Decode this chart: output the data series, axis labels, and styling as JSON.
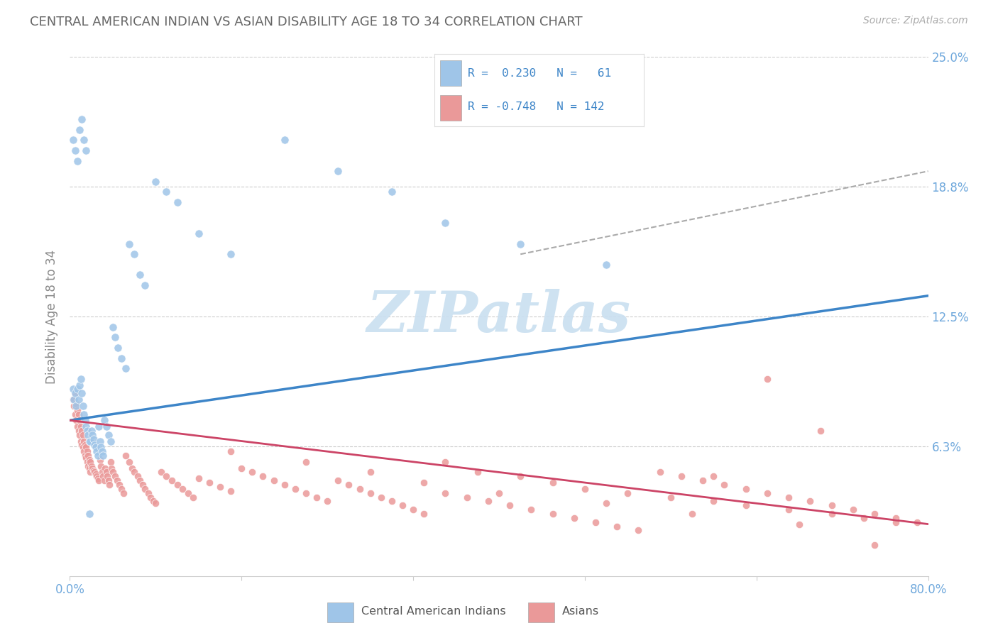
{
  "title": "CENTRAL AMERICAN INDIAN VS ASIAN DISABILITY AGE 18 TO 34 CORRELATION CHART",
  "source": "Source: ZipAtlas.com",
  "ylabel": "Disability Age 18 to 34",
  "xlim": [
    0.0,
    0.8
  ],
  "ylim": [
    0.0,
    0.25
  ],
  "yticks": [
    0.0,
    0.0625,
    0.125,
    0.1875,
    0.25
  ],
  "ytick_labels": [
    "",
    "6.3%",
    "12.5%",
    "18.8%",
    "25.0%"
  ],
  "xticks": [
    0.0,
    0.16,
    0.32,
    0.48,
    0.64,
    0.8
  ],
  "xtick_labels": [
    "0.0%",
    "",
    "",
    "",
    "",
    "80.0%"
  ],
  "blue_color": "#9fc5e8",
  "pink_color": "#ea9999",
  "blue_line_color": "#3d85c8",
  "pink_line_color": "#cc4466",
  "dashed_line_color": "#aaaaaa",
  "watermark_color": "#c9dff0",
  "background_color": "#ffffff",
  "grid_color": "#cccccc",
  "title_color": "#666666",
  "tick_color": "#6fa8dc",
  "blue_scatter_x": [
    0.003,
    0.004,
    0.005,
    0.006,
    0.007,
    0.008,
    0.009,
    0.01,
    0.011,
    0.012,
    0.013,
    0.014,
    0.015,
    0.016,
    0.017,
    0.018,
    0.019,
    0.02,
    0.021,
    0.022,
    0.023,
    0.024,
    0.025,
    0.026,
    0.027,
    0.028,
    0.029,
    0.03,
    0.031,
    0.032,
    0.034,
    0.036,
    0.038,
    0.04,
    0.042,
    0.045,
    0.048,
    0.052,
    0.055,
    0.06,
    0.065,
    0.07,
    0.08,
    0.09,
    0.1,
    0.12,
    0.15,
    0.2,
    0.25,
    0.3,
    0.35,
    0.42,
    0.5,
    0.003,
    0.005,
    0.007,
    0.009,
    0.011,
    0.013,
    0.015,
    0.018
  ],
  "blue_scatter_y": [
    0.09,
    0.085,
    0.088,
    0.082,
    0.09,
    0.085,
    0.092,
    0.095,
    0.088,
    0.082,
    0.078,
    0.075,
    0.072,
    0.07,
    0.068,
    0.065,
    0.065,
    0.07,
    0.068,
    0.066,
    0.063,
    0.062,
    0.06,
    0.058,
    0.072,
    0.065,
    0.062,
    0.06,
    0.058,
    0.075,
    0.072,
    0.068,
    0.065,
    0.12,
    0.115,
    0.11,
    0.105,
    0.1,
    0.16,
    0.155,
    0.145,
    0.14,
    0.19,
    0.185,
    0.18,
    0.165,
    0.155,
    0.21,
    0.195,
    0.185,
    0.17,
    0.16,
    0.15,
    0.21,
    0.205,
    0.2,
    0.215,
    0.22,
    0.21,
    0.205,
    0.03
  ],
  "pink_scatter_x": [
    0.003,
    0.004,
    0.005,
    0.005,
    0.006,
    0.006,
    0.007,
    0.007,
    0.008,
    0.008,
    0.009,
    0.009,
    0.01,
    0.01,
    0.011,
    0.011,
    0.012,
    0.012,
    0.013,
    0.013,
    0.014,
    0.014,
    0.015,
    0.015,
    0.016,
    0.016,
    0.017,
    0.017,
    0.018,
    0.018,
    0.019,
    0.019,
    0.02,
    0.021,
    0.022,
    0.023,
    0.024,
    0.025,
    0.026,
    0.027,
    0.028,
    0.029,
    0.03,
    0.031,
    0.032,
    0.033,
    0.034,
    0.035,
    0.036,
    0.037,
    0.038,
    0.039,
    0.04,
    0.042,
    0.044,
    0.046,
    0.048,
    0.05,
    0.052,
    0.055,
    0.058,
    0.06,
    0.063,
    0.065,
    0.068,
    0.07,
    0.073,
    0.075,
    0.078,
    0.08,
    0.085,
    0.09,
    0.095,
    0.1,
    0.105,
    0.11,
    0.115,
    0.12,
    0.13,
    0.14,
    0.15,
    0.16,
    0.17,
    0.18,
    0.19,
    0.2,
    0.21,
    0.22,
    0.23,
    0.24,
    0.25,
    0.26,
    0.27,
    0.28,
    0.29,
    0.3,
    0.31,
    0.32,
    0.33,
    0.35,
    0.37,
    0.39,
    0.41,
    0.43,
    0.45,
    0.47,
    0.49,
    0.51,
    0.53,
    0.55,
    0.57,
    0.59,
    0.61,
    0.63,
    0.65,
    0.67,
    0.69,
    0.71,
    0.73,
    0.75,
    0.77,
    0.79,
    0.35,
    0.38,
    0.42,
    0.45,
    0.48,
    0.52,
    0.56,
    0.6,
    0.63,
    0.67,
    0.71,
    0.74,
    0.77,
    0.15,
    0.22,
    0.28,
    0.33,
    0.4,
    0.5,
    0.58,
    0.68,
    0.75,
    0.6,
    0.65,
    0.7
  ],
  "pink_scatter_y": [
    0.085,
    0.082,
    0.088,
    0.078,
    0.083,
    0.075,
    0.08,
    0.072,
    0.078,
    0.07,
    0.075,
    0.068,
    0.072,
    0.065,
    0.07,
    0.063,
    0.068,
    0.062,
    0.065,
    0.06,
    0.063,
    0.058,
    0.062,
    0.057,
    0.06,
    0.055,
    0.058,
    0.053,
    0.056,
    0.052,
    0.055,
    0.05,
    0.053,
    0.052,
    0.051,
    0.05,
    0.049,
    0.048,
    0.047,
    0.046,
    0.056,
    0.053,
    0.05,
    0.048,
    0.046,
    0.052,
    0.05,
    0.048,
    0.046,
    0.044,
    0.055,
    0.052,
    0.05,
    0.048,
    0.046,
    0.044,
    0.042,
    0.04,
    0.058,
    0.055,
    0.052,
    0.05,
    0.048,
    0.046,
    0.044,
    0.042,
    0.04,
    0.038,
    0.036,
    0.035,
    0.05,
    0.048,
    0.046,
    0.044,
    0.042,
    0.04,
    0.038,
    0.047,
    0.045,
    0.043,
    0.041,
    0.052,
    0.05,
    0.048,
    0.046,
    0.044,
    0.042,
    0.04,
    0.038,
    0.036,
    0.046,
    0.044,
    0.042,
    0.04,
    0.038,
    0.036,
    0.034,
    0.032,
    0.03,
    0.04,
    0.038,
    0.036,
    0.034,
    0.032,
    0.03,
    0.028,
    0.026,
    0.024,
    0.022,
    0.05,
    0.048,
    0.046,
    0.044,
    0.042,
    0.04,
    0.038,
    0.036,
    0.034,
    0.032,
    0.03,
    0.028,
    0.026,
    0.055,
    0.05,
    0.048,
    0.045,
    0.042,
    0.04,
    0.038,
    0.036,
    0.034,
    0.032,
    0.03,
    0.028,
    0.026,
    0.06,
    0.055,
    0.05,
    0.045,
    0.04,
    0.035,
    0.03,
    0.025,
    0.015,
    0.048,
    0.095,
    0.07
  ],
  "blue_trend_x": [
    0.0,
    0.8
  ],
  "blue_trend_y": [
    0.075,
    0.135
  ],
  "pink_trend_x": [
    0.0,
    0.8
  ],
  "pink_trend_y": [
    0.075,
    0.025
  ],
  "dashed_trend_x": [
    0.42,
    0.8
  ],
  "dashed_trend_y": [
    0.155,
    0.195
  ]
}
